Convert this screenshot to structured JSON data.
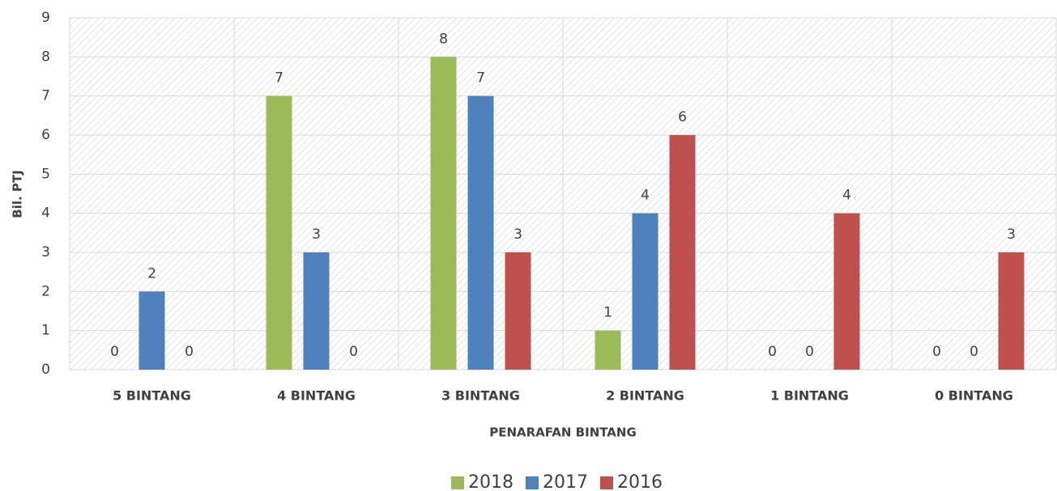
{
  "chart_data": {
    "type": "bar",
    "x_label": "PENARAFAN BINTANG",
    "y_label": "Bil. PTJ",
    "categories": [
      "5 BINTANG",
      "4 BINTANG",
      "3 BINTANG",
      "2 BINTANG",
      "1 BINTANG",
      "0 BINTANG"
    ],
    "series": [
      {
        "name": "2018",
        "color": "#9bbb59",
        "values": [
          0,
          7,
          8,
          1,
          0,
          0
        ]
      },
      {
        "name": "2017",
        "color": "#4f81bd",
        "values": [
          2,
          3,
          7,
          4,
          0,
          0
        ]
      },
      {
        "name": "2016",
        "color": "#c0504d",
        "values": [
          0,
          0,
          3,
          6,
          4,
          3
        ]
      }
    ],
    "ylim": [
      0,
      9
    ],
    "yticks": [
      0,
      1,
      2,
      3,
      4,
      5,
      6,
      7,
      8,
      9
    ],
    "grid": true,
    "legend": "bottom"
  }
}
